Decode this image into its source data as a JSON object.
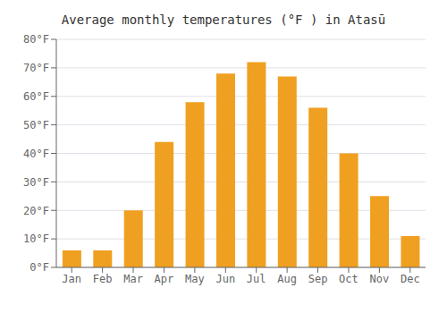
{
  "chart_data": {
    "type": "bar",
    "title": "Average monthly temperatures (°F ) in Atasū",
    "categories": [
      "Jan",
      "Feb",
      "Mar",
      "Apr",
      "May",
      "Jun",
      "Jul",
      "Aug",
      "Sep",
      "Oct",
      "Nov",
      "Dec"
    ],
    "values": [
      6,
      6,
      20,
      44,
      58,
      68,
      72,
      67,
      56,
      40,
      25,
      11
    ],
    "color": "#F0A020",
    "ylim": [
      0,
      80
    ],
    "yticks": [
      {
        "value": 0,
        "label": "0°F"
      },
      {
        "value": 10,
        "label": "10°F"
      },
      {
        "value": 20,
        "label": "20°F"
      },
      {
        "value": 30,
        "label": "30°F"
      },
      {
        "value": 40,
        "label": "40°F"
      },
      {
        "value": 50,
        "label": "50°F"
      },
      {
        "value": 60,
        "label": "60°F"
      },
      {
        "value": 70,
        "label": "70°F"
      },
      {
        "value": 80,
        "label": "80°F"
      }
    ],
    "grid": true
  }
}
